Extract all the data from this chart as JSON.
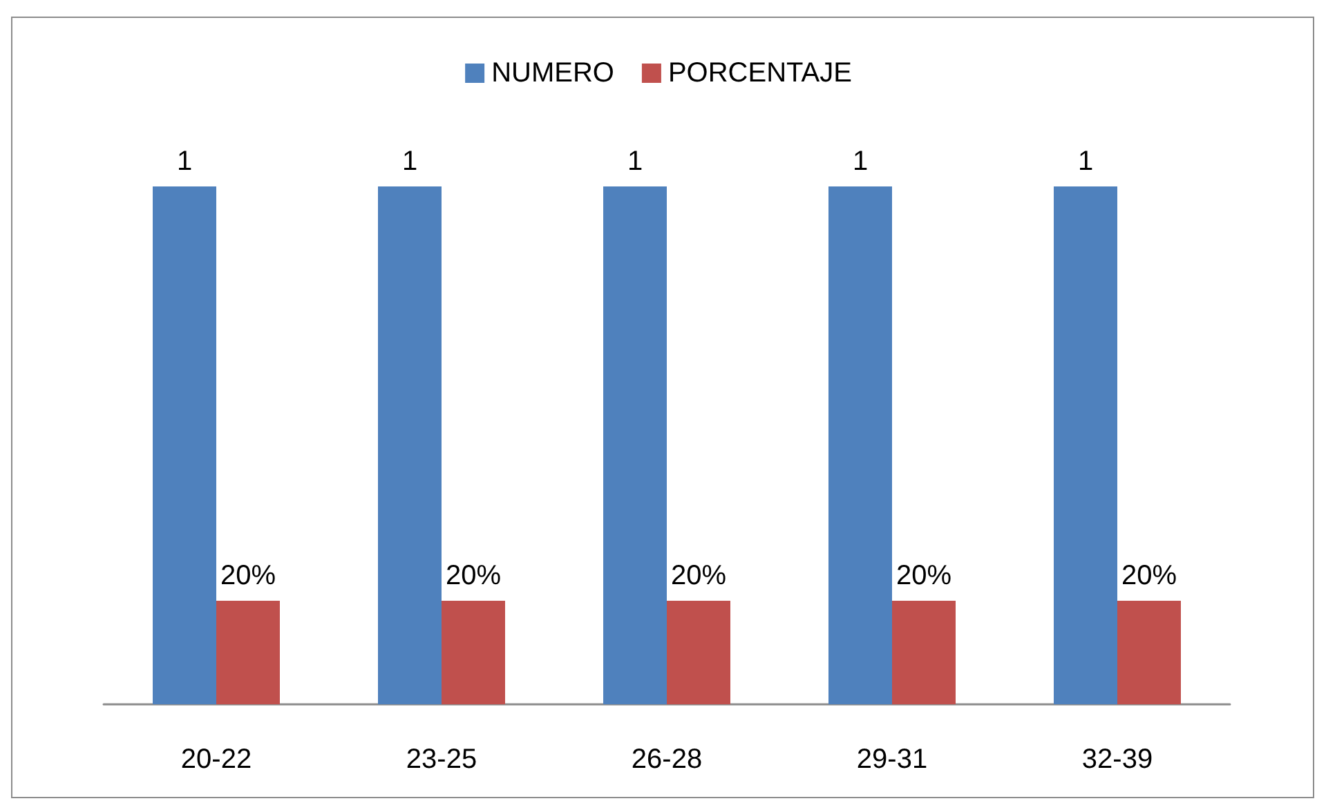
{
  "chart_data": {
    "type": "bar",
    "categories": [
      "20-22",
      "23-25",
      "26-28",
      "29-31",
      "32-39"
    ],
    "series": [
      {
        "name": "NUMERO",
        "color": "#4f81bd",
        "values": [
          1,
          1,
          1,
          1,
          1
        ],
        "value_labels": [
          "1",
          "1",
          "1",
          "1",
          "1"
        ]
      },
      {
        "name": "PORCENTAJE",
        "color": "#c0504d",
        "values": [
          0.2,
          0.2,
          0.2,
          0.2,
          0.2
        ],
        "value_labels": [
          "20%",
          "20%",
          "20%",
          "20%",
          "20%"
        ]
      }
    ],
    "legend": "top",
    "grid": false,
    "tick_labels": "x"
  }
}
